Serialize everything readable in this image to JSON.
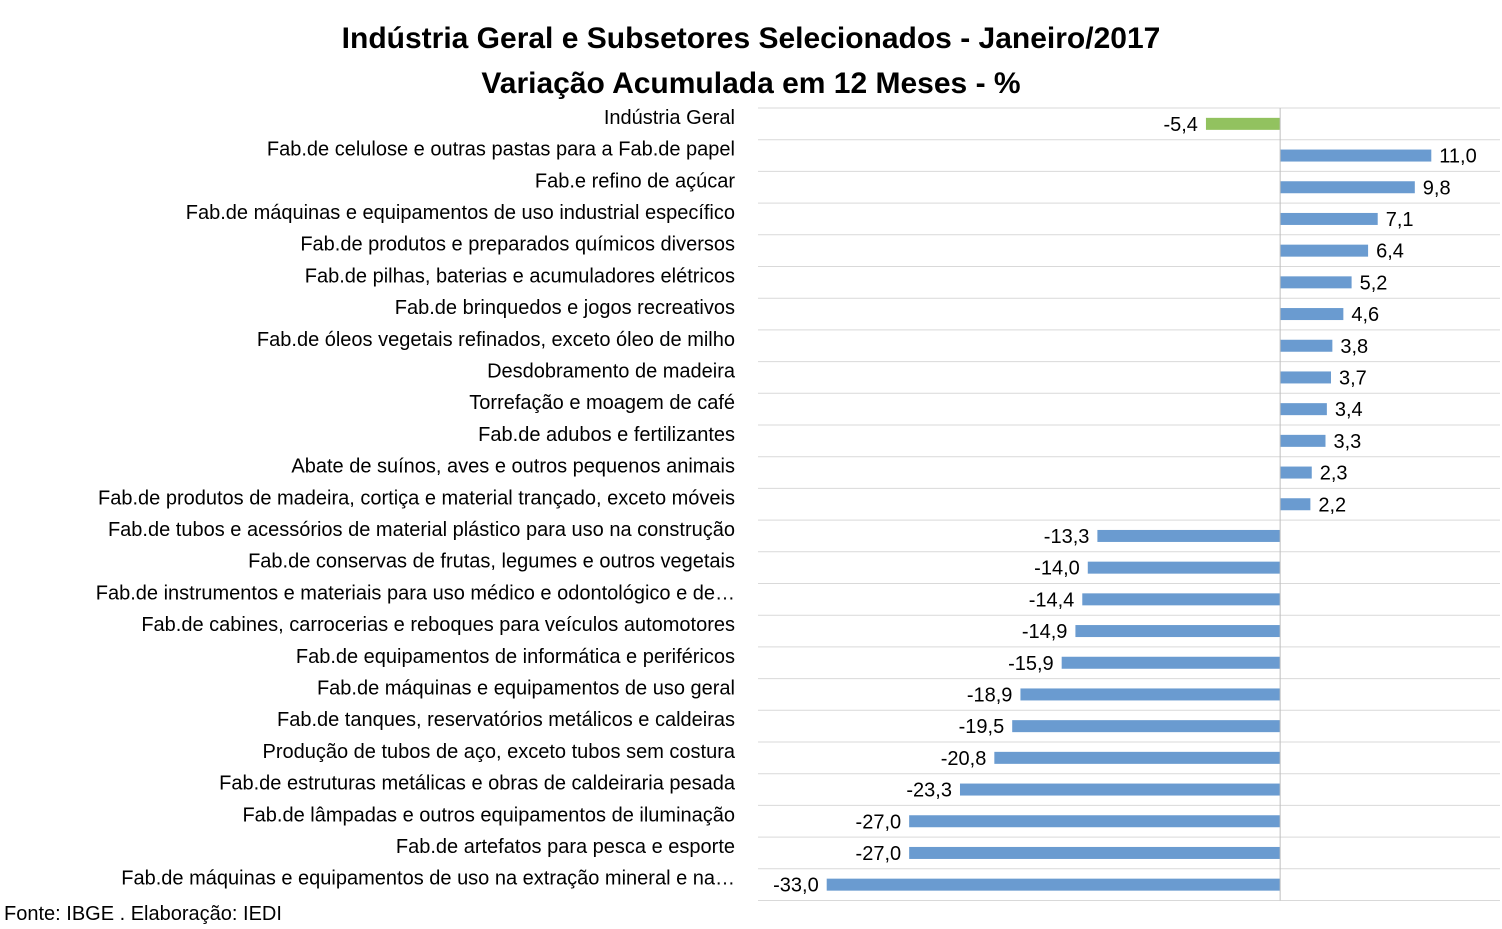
{
  "chart_data": {
    "type": "bar",
    "orientation": "horizontal",
    "title": "Indústria Geral e Subsetores Selecionados - Janeiro/2017",
    "subtitle": "Variação Acumulada em 12 Meses - %",
    "grid": "horizontal",
    "legend": "none",
    "categories": [
      "Indústria Geral",
      "Fab.de celulose e outras pastas para a Fab.de papel",
      "Fab.e refino de açúcar",
      "Fab.de máquinas e equipamentos de uso industrial específico",
      "Fab.de produtos e preparados químicos diversos",
      "Fab.de pilhas, baterias e acumuladores elétricos",
      "Fab.de brinquedos e jogos recreativos",
      "Fab.de óleos vegetais refinados, exceto óleo de milho",
      "Desdobramento de madeira",
      "Torrefação e moagem de café",
      "Fab.de adubos e fertilizantes",
      "Abate de suínos, aves e outros pequenos animais",
      "Fab.de produtos de madeira, cortiça e material trançado, exceto móveis",
      "Fab.de tubos e acessórios de material plástico para uso na construção",
      "Fab.de conservas de frutas, legumes e outros vegetais",
      "Fab.de instrumentos e materiais para uso médico e odontológico e de…",
      "Fab.de cabines, carrocerias e reboques para veículos automotores",
      "Fab.de equipamentos de informática e periféricos",
      "Fab.de máquinas e equipamentos de uso geral",
      "Fab.de tanques, reservatórios metálicos e caldeiras",
      "Produção de tubos de aço, exceto tubos sem costura",
      "Fab.de estruturas metálicas e obras de caldeiraria pesada",
      "Fab.de lâmpadas e outros equipamentos de iluminação",
      "Fab.de artefatos para pesca e esporte",
      "Fab.de máquinas e equipamentos de uso na extração mineral e na…"
    ],
    "values": [
      -5.4,
      11.0,
      9.8,
      7.1,
      6.4,
      5.2,
      4.6,
      3.8,
      3.7,
      3.4,
      3.3,
      2.3,
      2.2,
      -13.3,
      -14.0,
      -14.4,
      -14.9,
      -15.9,
      -18.9,
      -19.5,
      -20.8,
      -23.3,
      -27.0,
      -27.0,
      -33.0
    ],
    "value_labels": [
      "-5,4",
      "11,0",
      "9,8",
      "7,1",
      "6,4",
      "5,2",
      "4,6",
      "3,8",
      "3,7",
      "3,4",
      "3,3",
      "2,3",
      "2,2",
      "-13,3",
      "-14,0",
      "-14,4",
      "-14,9",
      "-15,9",
      "-18,9",
      "-19,5",
      "-20,8",
      "-23,3",
      "-27,0",
      "-27,0",
      "-33,0"
    ],
    "xlim": [
      -38,
      16
    ],
    "colors": {
      "highlight": "#92c25f",
      "default": "#6a9bd0",
      "gridline": "#d9d9d9",
      "axis": "#bfbfbf"
    }
  },
  "source": "Fonte: IBGE . Elaboração: IEDI"
}
